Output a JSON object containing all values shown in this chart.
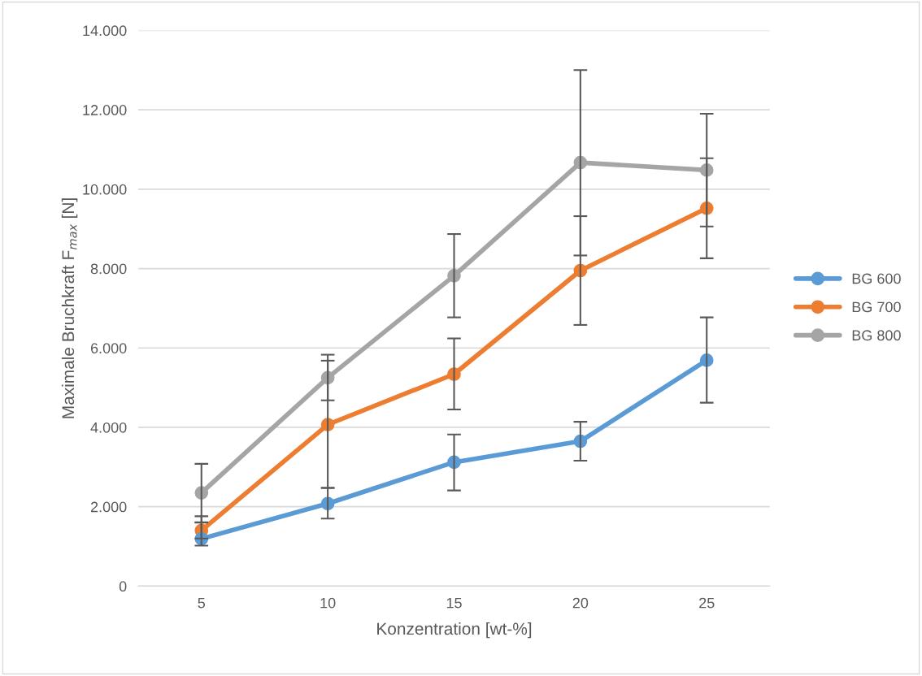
{
  "chart_data": {
    "type": "line",
    "xlabel": "Konzentration [wt-%]",
    "ylabel": "Maximale Bruchkraft F$_{max}$ [N]",
    "categories": [
      "5",
      "10",
      "15",
      "20",
      "25"
    ],
    "series": [
      {
        "name": "BG 600",
        "color": "#5b9bd5",
        "values": [
          1190,
          2080,
          3120,
          3650,
          5690
        ],
        "errors": [
          [
            1020,
            1760
          ],
          [
            1700,
            2470
          ],
          [
            2410,
            3820
          ],
          [
            3160,
            4140
          ],
          [
            4620,
            6770
          ]
        ]
      },
      {
        "name": "BG 700",
        "color": "#ed7d31",
        "values": [
          1400,
          4070,
          5340,
          7950,
          9520
        ],
        "errors": [
          [
            1200,
            1600
          ],
          [
            2480,
            5680
          ],
          [
            4450,
            6240
          ],
          [
            6580,
            9320
          ],
          [
            8260,
            10780
          ]
        ]
      },
      {
        "name": "BG 800",
        "color": "#a5a5a5",
        "values": [
          2350,
          5250,
          7820,
          10670,
          10480
        ],
        "errors": [
          [
            1610,
            3080
          ],
          [
            4680,
            5830
          ],
          [
            6770,
            8870
          ],
          [
            8330,
            13000
          ],
          [
            9060,
            11900
          ]
        ]
      }
    ],
    "ylim": [
      0,
      14000
    ],
    "yticks": [
      {
        "value": 0,
        "label": "0"
      },
      {
        "value": 2000,
        "label": "2.000"
      },
      {
        "value": 4000,
        "label": "4.000"
      },
      {
        "value": 6000,
        "label": "6.000"
      },
      {
        "value": 8000,
        "label": "8.000"
      },
      {
        "value": 10000,
        "label": "10.000"
      },
      {
        "value": 12000,
        "label": "12.000"
      },
      {
        "value": 14000,
        "label": "14.000"
      }
    ],
    "grid": "y",
    "legend": "right",
    "marker": "circle",
    "line_style": "solid"
  }
}
